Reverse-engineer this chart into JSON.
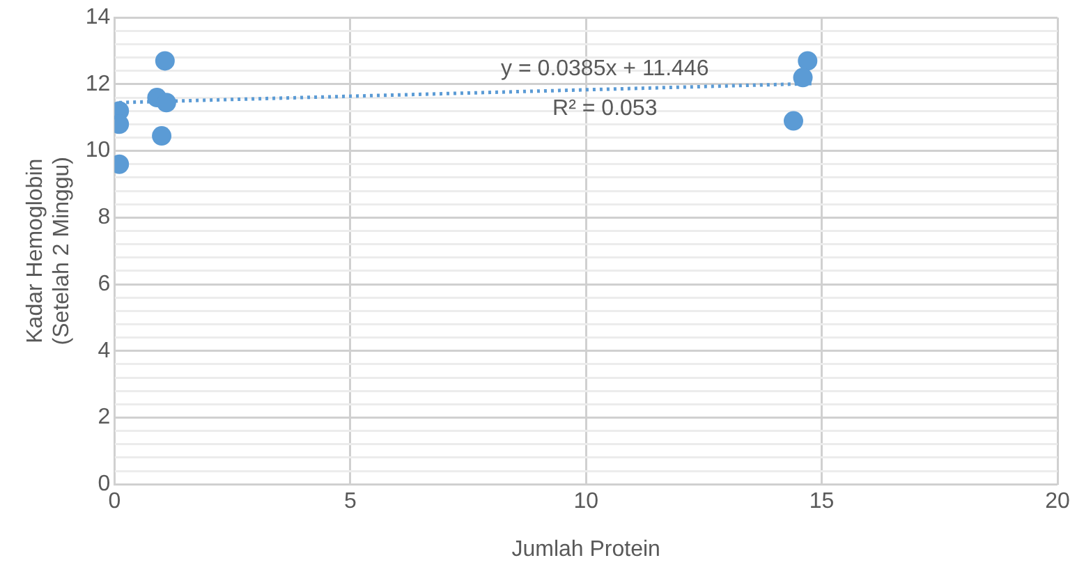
{
  "chart_data": {
    "type": "scatter",
    "xlabel": "Jumlah Protein",
    "ylabel": "Kadar Hemoglobin\n(Setelah 2 Minggu)",
    "xlim": [
      0,
      20
    ],
    "xticks": [
      0,
      5,
      10,
      15,
      20
    ],
    "ylim": [
      0,
      14
    ],
    "yticks": [
      0,
      {
        "value": 0.4,
        "label": null
      },
      {
        "value": 0.8,
        "label": null
      },
      {
        "value": 1.2,
        "label": null
      },
      {
        "value": 1.6,
        "label": null
      },
      2,
      {
        "value": 2.4,
        "label": null
      },
      {
        "value": 2.8,
        "label": null
      },
      {
        "value": 3.2,
        "label": null
      },
      {
        "value": 3.6,
        "label": null
      },
      4,
      {
        "value": 4.4,
        "label": null
      },
      {
        "value": 4.8,
        "label": null
      },
      {
        "value": 5.2,
        "label": null
      },
      {
        "value": 5.6,
        "label": null
      },
      6,
      {
        "value": 6.4,
        "label": null
      },
      {
        "value": 6.8,
        "label": null
      },
      {
        "value": 7.2,
        "label": null
      },
      {
        "value": 7.6,
        "label": null
      },
      8,
      {
        "value": 8.4,
        "label": null
      },
      {
        "value": 8.8,
        "label": null
      },
      {
        "value": 9.2,
        "label": null
      },
      {
        "value": 9.6,
        "label": null
      },
      10,
      {
        "value": 10.4,
        "label": null
      },
      {
        "value": 10.8,
        "label": null
      },
      {
        "value": 11.2,
        "label": null
      },
      {
        "value": 11.6,
        "label": null
      },
      12,
      {
        "value": 12.4,
        "label": null
      },
      {
        "value": 12.8,
        "label": null
      },
      {
        "value": 13.2,
        "label": null
      },
      {
        "value": 13.6,
        "label": null
      },
      14
    ],
    "grid": true,
    "marker": "circle",
    "series": [
      {
        "color": "#5b9bd5",
        "x": [
          0.1,
          0.1,
          0.1,
          1.07,
          0.9,
          1.1,
          1.0,
          14.7,
          14.6,
          14.4
        ],
        "values": [
          11.2,
          10.8,
          9.6,
          12.7,
          11.6,
          11.45,
          10.45,
          12.7,
          12.2,
          10.9
        ]
      },
      {
        "type": "line",
        "color": "#5b9bd5",
        "line_style": "dotted",
        "marker": "none",
        "x": [
          0.1,
          14.8
        ],
        "values": [
          11.45,
          12.02
        ]
      }
    ],
    "annotations": [
      "y = 0.0385x + 11.446",
      "R² = 0.053"
    ]
  }
}
